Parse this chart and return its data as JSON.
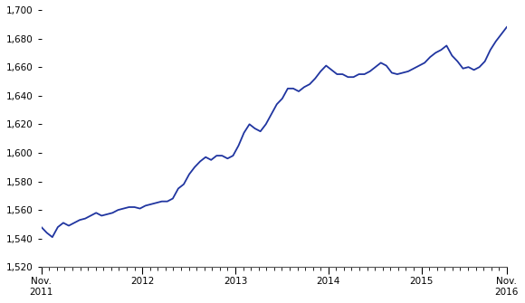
{
  "line_color": "#2035a0",
  "line_width": 1.3,
  "ylim": [
    1520,
    1700
  ],
  "yticks": [
    1520,
    1540,
    1560,
    1580,
    1600,
    1620,
    1640,
    1660,
    1680,
    1700
  ],
  "background_color": "#ffffff",
  "plot_bg_color": "#ffffff",
  "x_major_labels": [
    "Nov.\n2011",
    "2012",
    "2013",
    "2014",
    "2015",
    "Nov.\n2016"
  ],
  "x_major_pos": [
    0,
    13,
    25,
    37,
    49,
    60
  ],
  "values": [
    1548,
    1544,
    1541,
    1548,
    1551,
    1549,
    1551,
    1553,
    1554,
    1556,
    1558,
    1556,
    1557,
    1558,
    1560,
    1561,
    1562,
    1562,
    1561,
    1563,
    1564,
    1565,
    1566,
    1566,
    1568,
    1575,
    1578,
    1585,
    1590,
    1594,
    1597,
    1595,
    1598,
    1598,
    1596,
    1598,
    1605,
    1614,
    1620,
    1617,
    1615,
    1620,
    1627,
    1634,
    1638,
    1645,
    1645,
    1643,
    1646,
    1648,
    1652,
    1657,
    1661,
    1658,
    1655,
    1655,
    1653,
    1653,
    1655,
    1655,
    1657,
    1660,
    1663,
    1661,
    1656,
    1655,
    1656,
    1657,
    1659,
    1661,
    1663,
    1667,
    1670,
    1672,
    1675,
    1668,
    1664,
    1659,
    1660,
    1658,
    1660,
    1664,
    1672,
    1678,
    1683,
    1688
  ]
}
